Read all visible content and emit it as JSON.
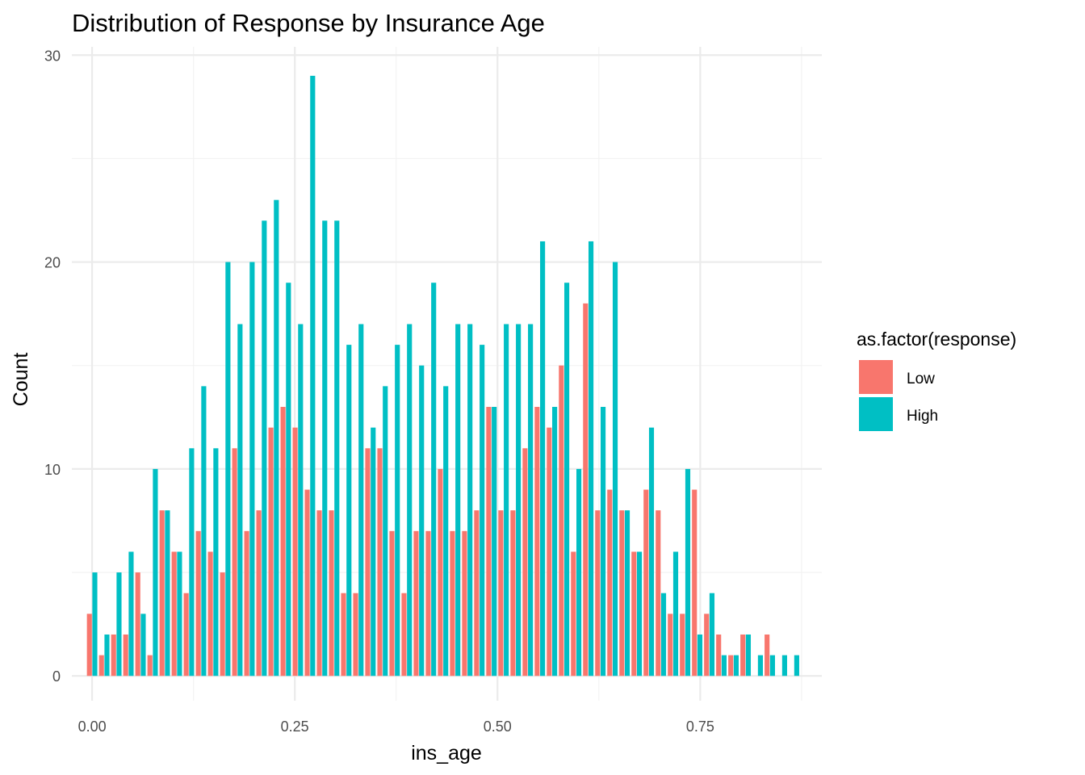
{
  "chart_data": {
    "type": "bar",
    "title": "Distribution of Response by Insurance Age",
    "xlabel": "ins_age",
    "ylabel": "Count",
    "xlim": [
      -0.025,
      0.9
    ],
    "ylim": [
      -1.2,
      30.4
    ],
    "x_ticks": [
      0,
      0.25,
      0.5,
      0.75
    ],
    "x_tick_labels": [
      "0.00",
      "0.25",
      "0.50",
      "0.75"
    ],
    "y_ticks": [
      0,
      10,
      20,
      30
    ],
    "y_tick_labels": [
      "0",
      "10",
      "20",
      "30"
    ],
    "grid": true,
    "legend_position": "right",
    "legend_title": "as.factor(response)",
    "bin_width": 0.01493,
    "x": [
      0.0,
      0.01493,
      0.02985,
      0.04478,
      0.0597,
      0.07463,
      0.08955,
      0.10448,
      0.1194,
      0.13433,
      0.14925,
      0.16418,
      0.1791,
      0.19403,
      0.20896,
      0.22388,
      0.23881,
      0.25373,
      0.26866,
      0.28358,
      0.29851,
      0.31343,
      0.32836,
      0.34328,
      0.35821,
      0.37313,
      0.38806,
      0.40299,
      0.41791,
      0.43284,
      0.44776,
      0.46269,
      0.47761,
      0.49254,
      0.50746,
      0.52239,
      0.53731,
      0.55224,
      0.56716,
      0.58209,
      0.59701,
      0.61194,
      0.62687,
      0.64179,
      0.65672,
      0.67164,
      0.68657,
      0.70149,
      0.71642,
      0.73134,
      0.74627,
      0.76119,
      0.77612,
      0.79104,
      0.80597,
      0.8209,
      0.83582,
      0.85075,
      0.86567
    ],
    "series": [
      {
        "name": "Low",
        "color": "#F8766D",
        "values": [
          3,
          1,
          2,
          2,
          5,
          1,
          8,
          6,
          4,
          7,
          6,
          5,
          11,
          7,
          8,
          12,
          13,
          12,
          9,
          8,
          8,
          4,
          4,
          11,
          11,
          7,
          4,
          7,
          7,
          10,
          7,
          7,
          8,
          13,
          8,
          8,
          11,
          13,
          12,
          15,
          6,
          18,
          8,
          9,
          8,
          6,
          9,
          8,
          3,
          3,
          9,
          3,
          2,
          1,
          2,
          0,
          2,
          0,
          0
        ]
      },
      {
        "name": "High",
        "color": "#00BFC4",
        "values": [
          5,
          2,
          5,
          6,
          3,
          10,
          8,
          6,
          11,
          14,
          11,
          20,
          17,
          20,
          22,
          23,
          19,
          17,
          29,
          22,
          22,
          16,
          17,
          12,
          14,
          16,
          17,
          15,
          19,
          14,
          17,
          17,
          16,
          13,
          17,
          17,
          17,
          21,
          13,
          19,
          10,
          21,
          13,
          20,
          8,
          6,
          12,
          4,
          6,
          10,
          2,
          4,
          1,
          1,
          2,
          1,
          1,
          1,
          1
        ]
      }
    ]
  }
}
